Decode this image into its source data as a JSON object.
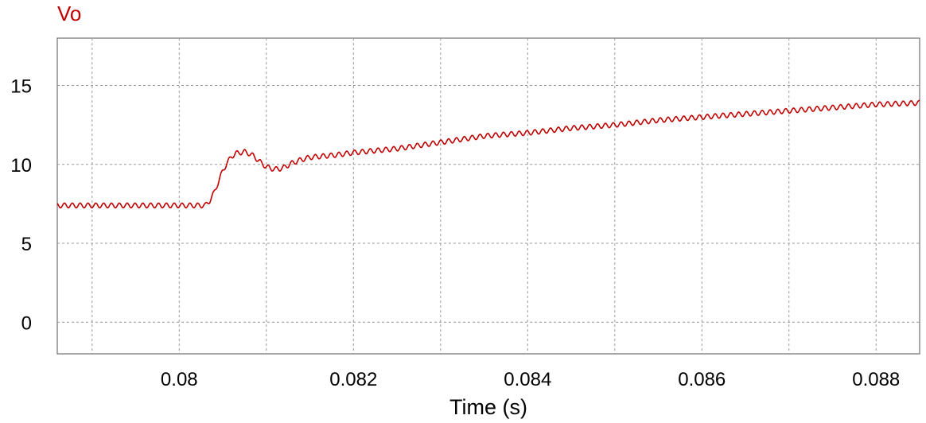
{
  "chart_data": {
    "type": "line",
    "title": "",
    "xlabel": "Time (s)",
    "ylabel": "",
    "xlim": [
      0.0786,
      0.0885
    ],
    "ylim": [
      -2,
      18
    ],
    "x_ticks": [
      0.08,
      0.082,
      0.084,
      0.086,
      0.088
    ],
    "x_tick_labels": [
      "0.08",
      "0.082",
      "0.084",
      "0.086",
      "0.088"
    ],
    "x_minor_grid": [
      0.079,
      0.081,
      0.083,
      0.085,
      0.087
    ],
    "y_ticks": [
      0,
      5,
      10,
      15
    ],
    "y_tick_labels": [
      "0",
      "5",
      "10",
      "15"
    ],
    "grid": true,
    "legend_position": "top-left",
    "series": [
      {
        "name": "Vo",
        "color": "#c00000",
        "ripple_amplitude": 0.15,
        "ripple_period": 9e-05,
        "x": [
          0.0786,
          0.079,
          0.0795,
          0.08,
          0.0803,
          0.08035,
          0.0804,
          0.08045,
          0.0805,
          0.08055,
          0.0806,
          0.08065,
          0.0807,
          0.08075,
          0.0808,
          0.08085,
          0.0809,
          0.08095,
          0.081,
          0.08105,
          0.0811,
          0.08115,
          0.0812,
          0.08125,
          0.0813,
          0.0814,
          0.0815,
          0.0818,
          0.082,
          0.0825,
          0.083,
          0.0835,
          0.084,
          0.0845,
          0.085,
          0.0855,
          0.086,
          0.0865,
          0.087,
          0.0875,
          0.088,
          0.0885
        ],
        "y": [
          7.4,
          7.4,
          7.4,
          7.4,
          7.4,
          7.7,
          8.2,
          8.9,
          9.6,
          10.1,
          10.5,
          10.7,
          10.75,
          10.8,
          10.7,
          10.55,
          10.3,
          10.05,
          9.85,
          9.75,
          9.7,
          9.72,
          9.8,
          9.95,
          10.1,
          10.3,
          10.45,
          10.6,
          10.75,
          11.0,
          11.4,
          11.8,
          12.0,
          12.3,
          12.5,
          12.8,
          13.0,
          13.2,
          13.4,
          13.6,
          13.8,
          13.9
        ]
      }
    ]
  }
}
